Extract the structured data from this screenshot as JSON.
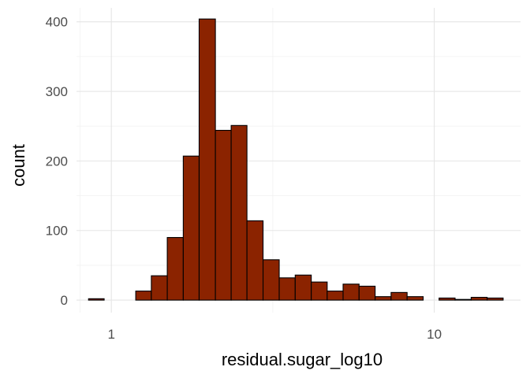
{
  "chart_data": {
    "type": "bar",
    "title": "",
    "xlabel": "residual.sugar_log10",
    "ylabel": "count",
    "x_scale": "log10",
    "xlim": [
      0.78,
      18.5
    ],
    "ylim": [
      -18,
      420
    ],
    "x_ticks": [
      {
        "value": 1,
        "label": "1"
      },
      {
        "value": 10,
        "label": "10"
      }
    ],
    "x_minor_ticks": [
      0.8,
      3.1623
    ],
    "y_ticks": [
      {
        "value": 0,
        "label": "0"
      },
      {
        "value": 100,
        "label": "100"
      },
      {
        "value": 200,
        "label": "200"
      },
      {
        "value": 300,
        "label": "300"
      },
      {
        "value": 400,
        "label": "400"
      }
    ],
    "y_minor_ticks": [
      50,
      150,
      250,
      350
    ],
    "grid": true,
    "bar_fill": "#8b2300",
    "bar_stroke": "#000000",
    "bins": [
      {
        "x0": 0.85,
        "x1": 0.95,
        "count": 2
      },
      {
        "x0": 0.95,
        "x1": 1.06,
        "count": 0
      },
      {
        "x0": 1.06,
        "x1": 1.19,
        "count": 0
      },
      {
        "x0": 1.19,
        "x1": 1.33,
        "count": 13
      },
      {
        "x0": 1.33,
        "x1": 1.49,
        "count": 35
      },
      {
        "x0": 1.49,
        "x1": 1.67,
        "count": 90
      },
      {
        "x0": 1.67,
        "x1": 1.87,
        "count": 207
      },
      {
        "x0": 1.87,
        "x1": 2.1,
        "count": 404
      },
      {
        "x0": 2.1,
        "x1": 2.35,
        "count": 244
      },
      {
        "x0": 2.35,
        "x1": 2.63,
        "count": 251
      },
      {
        "x0": 2.63,
        "x1": 2.95,
        "count": 114
      },
      {
        "x0": 2.95,
        "x1": 3.31,
        "count": 58
      },
      {
        "x0": 3.31,
        "x1": 3.71,
        "count": 32
      },
      {
        "x0": 3.71,
        "x1": 4.16,
        "count": 36
      },
      {
        "x0": 4.16,
        "x1": 4.66,
        "count": 26
      },
      {
        "x0": 4.66,
        "x1": 5.22,
        "count": 13
      },
      {
        "x0": 5.22,
        "x1": 5.85,
        "count": 23
      },
      {
        "x0": 5.85,
        "x1": 6.56,
        "count": 20
      },
      {
        "x0": 6.56,
        "x1": 7.35,
        "count": 5
      },
      {
        "x0": 7.35,
        "x1": 8.24,
        "count": 11
      },
      {
        "x0": 8.24,
        "x1": 9.24,
        "count": 5
      },
      {
        "x0": 9.24,
        "x1": 10.35,
        "count": 0
      },
      {
        "x0": 10.35,
        "x1": 11.6,
        "count": 3
      },
      {
        "x0": 11.6,
        "x1": 13.01,
        "count": 1
      },
      {
        "x0": 13.01,
        "x1": 14.58,
        "count": 4
      },
      {
        "x0": 14.58,
        "x1": 16.34,
        "count": 3
      }
    ]
  }
}
